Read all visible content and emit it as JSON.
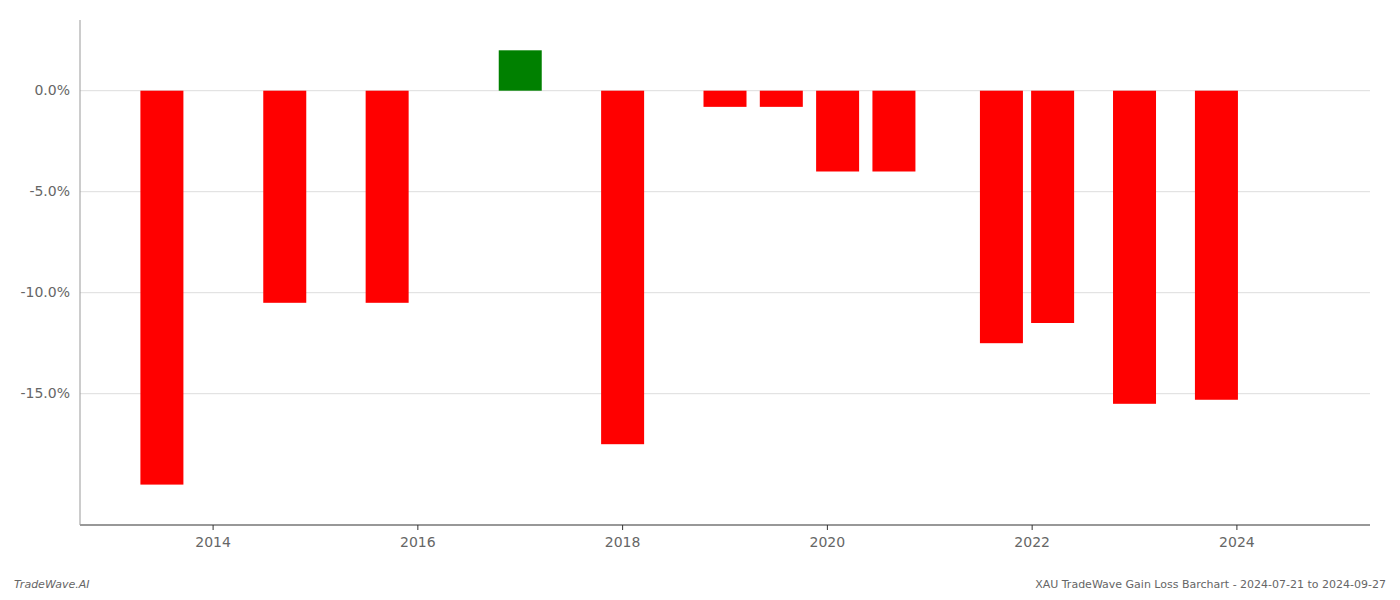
{
  "chart_data": {
    "type": "bar",
    "x": [
      2013.5,
      2014.7,
      2015.7,
      2017.0,
      2018.0,
      2019.0,
      2019.55,
      2020.1,
      2020.65,
      2021.7,
      2022.2,
      2023.0,
      2023.8
    ],
    "values": [
      -19.5,
      -10.5,
      -10.5,
      2.0,
      -17.5,
      -0.8,
      -0.8,
      -4.0,
      -4.0,
      -12.5,
      -11.5,
      -15.5,
      -15.3
    ],
    "colors": [
      "#ff0000",
      "#ff0000",
      "#ff0000",
      "#008000",
      "#ff0000",
      "#ff0000",
      "#ff0000",
      "#ff0000",
      "#ff0000",
      "#ff0000",
      "#ff0000",
      "#ff0000",
      "#ff0000"
    ],
    "xlim": [
      2012.7,
      2025.3
    ],
    "xticks": [
      2014,
      2016,
      2018,
      2020,
      2022,
      2024
    ],
    "ylim": [
      -21.5,
      3.5
    ],
    "yticks": [
      {
        "value": 0.0,
        "label": "0.0%"
      },
      {
        "value": -5.0,
        "label": "-5.0%"
      },
      {
        "value": -10.0,
        "label": "-10.0%"
      },
      {
        "value": -15.0,
        "label": "-15.0%"
      }
    ],
    "grid": true,
    "annotations": [
      "TradeWave.AI",
      "XAU TradeWave Gain Loss Barchart - 2024-07-21 to 2024-09-27"
    ]
  }
}
